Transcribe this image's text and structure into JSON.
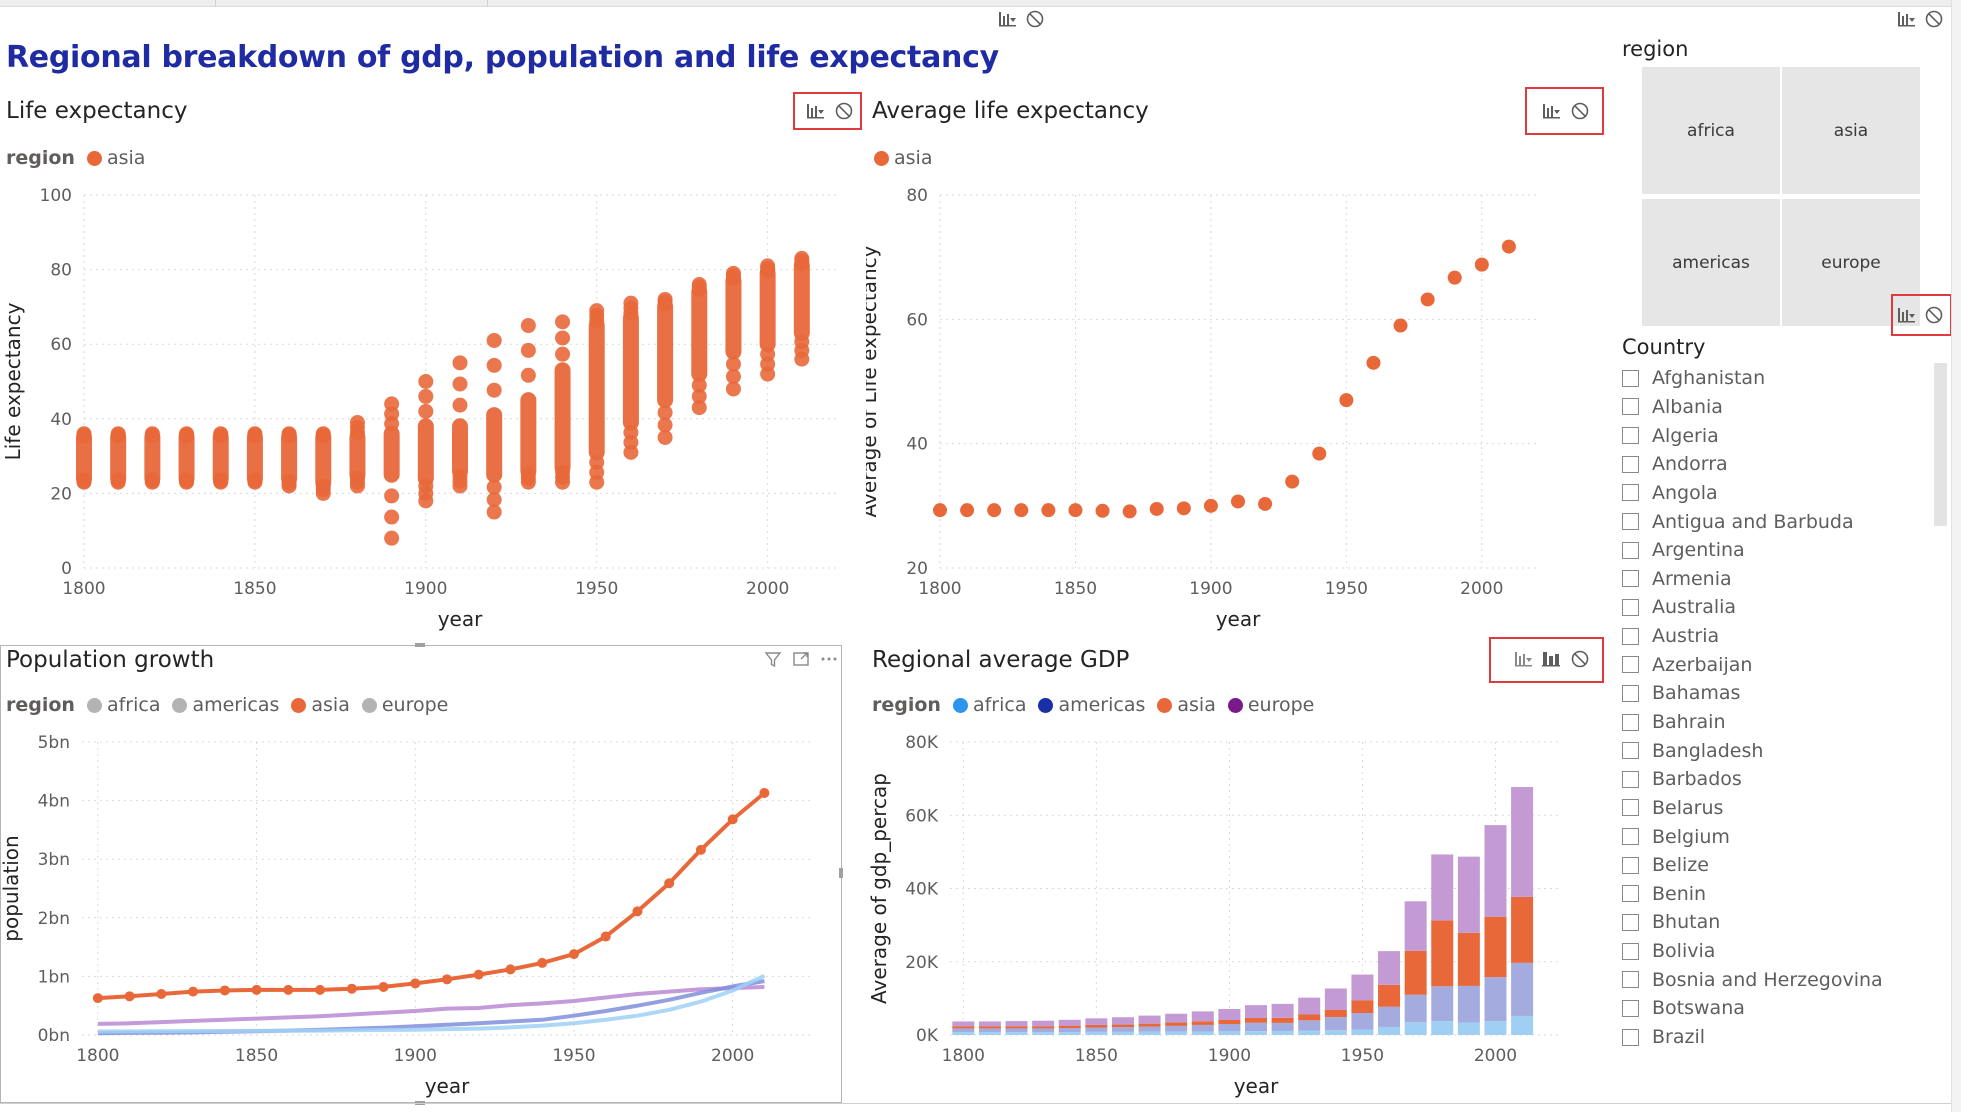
{
  "page": {
    "title": "Regional breakdown of gdp, population and life expectancy"
  },
  "colors": {
    "accent_title": "#1f2ba3",
    "asia": "#e8683a",
    "africa": "#2e95ef",
    "americas": "#1a2fa5",
    "europe": "#7a1a8a",
    "inactive": "#b3b3b3",
    "icon_box": "#e0393e"
  },
  "icons": {
    "filter": "filter-icon",
    "no_impact": "none-icon",
    "highlight": "highlight-icon",
    "focus": "focus-mode-icon",
    "more": "more-options-icon"
  },
  "life_exp": {
    "title": "Life expectancy",
    "legend_title": "region",
    "legend_items": [
      "asia"
    ]
  },
  "avg_life": {
    "title": "Average life expectancy",
    "legend_items": [
      "asia"
    ]
  },
  "pop_growth": {
    "title": "Population growth",
    "legend_title": "region",
    "legend_items": [
      "africa",
      "americas",
      "asia",
      "europe"
    ]
  },
  "gdp": {
    "title": "Regional average GDP",
    "legend_title": "region",
    "legend_items": [
      "africa",
      "americas",
      "asia",
      "europe"
    ]
  },
  "region_slicer": {
    "title": "region",
    "tiles": [
      "africa",
      "asia",
      "americas",
      "europe"
    ]
  },
  "country_slicer": {
    "title": "Country",
    "items": [
      "Afghanistan",
      "Albania",
      "Algeria",
      "Andorra",
      "Angola",
      "Antigua and Barbuda",
      "Argentina",
      "Armenia",
      "Australia",
      "Austria",
      "Azerbaijan",
      "Bahamas",
      "Bahrain",
      "Bangladesh",
      "Barbados",
      "Belarus",
      "Belgium",
      "Belize",
      "Benin",
      "Bhutan",
      "Bolivia",
      "Bosnia and Herzegovina",
      "Botswana",
      "Brazil"
    ]
  },
  "chart_data": [
    {
      "id": "life_expectancy",
      "type": "scatter",
      "title": "Life expectancy",
      "xlabel": "year",
      "ylabel": "Life expectancy",
      "xlim": [
        1800,
        2020
      ],
      "ylim": [
        0,
        100
      ],
      "xticks": [
        1800,
        1850,
        1900,
        1950,
        2000
      ],
      "yticks": [
        0,
        20,
        40,
        60,
        80,
        100
      ],
      "legend": "top-left",
      "series": [
        {
          "name": "asia",
          "color": "#e8683a",
          "x": [
            1800,
            1810,
            1820,
            1830,
            1840,
            1850,
            1860,
            1870,
            1880,
            1890,
            1900,
            1910,
            1920,
            1930,
            1940,
            1950,
            1960,
            1970,
            1980,
            1990,
            2000,
            2010
          ],
          "y_min": [
            23,
            23,
            23,
            23,
            23,
            23,
            22,
            20,
            22,
            8,
            18,
            22,
            15,
            23,
            23,
            23,
            31,
            35,
            43,
            48,
            52,
            56
          ],
          "y_max": [
            36,
            36,
            36,
            36,
            36,
            36,
            36,
            36,
            39,
            44,
            50,
            55,
            61,
            65,
            66,
            69,
            71,
            72,
            76,
            79,
            81,
            83
          ],
          "y_core_min": [
            24,
            24,
            24,
            24,
            24,
            24,
            24,
            23,
            25,
            25,
            24,
            26,
            25,
            26,
            27,
            31,
            39,
            45,
            52,
            58,
            60,
            63
          ],
          "y_core_max": [
            35,
            35,
            35,
            35,
            35,
            35,
            35,
            35,
            35,
            36,
            38,
            38,
            41,
            45,
            53,
            65,
            67,
            70,
            74,
            77,
            79,
            81
          ]
        }
      ]
    },
    {
      "id": "average_life_expectancy",
      "type": "scatter",
      "title": "Average life expectancy",
      "xlabel": "year",
      "ylabel": "Average of Life expectancy",
      "xlim": [
        1800,
        2020
      ],
      "ylim": [
        20,
        80
      ],
      "xticks": [
        1800,
        1850,
        1900,
        1950,
        2000
      ],
      "yticks": [
        20,
        40,
        60,
        80
      ],
      "series": [
        {
          "name": "asia",
          "color": "#e8683a",
          "x": [
            1800,
            1810,
            1820,
            1830,
            1840,
            1850,
            1860,
            1870,
            1880,
            1890,
            1900,
            1910,
            1920,
            1930,
            1940,
            1950,
            1960,
            1970,
            1980,
            1990,
            2000,
            2010
          ],
          "y": [
            29.3,
            29.3,
            29.3,
            29.3,
            29.3,
            29.3,
            29.2,
            29.1,
            29.5,
            29.6,
            30.0,
            30.7,
            30.3,
            33.9,
            38.4,
            47.0,
            53.0,
            59.0,
            63.2,
            66.7,
            68.8,
            71.7
          ]
        }
      ]
    },
    {
      "id": "population_growth",
      "type": "line",
      "title": "Population growth",
      "xlabel": "year",
      "ylabel": "population",
      "xlim": [
        1795,
        2025
      ],
      "ylim": [
        0,
        5000000000
      ],
      "xticks": [
        1800,
        1850,
        1900,
        1950,
        2000
      ],
      "yticks": [
        0,
        1000000000,
        2000000000,
        3000000000,
        4000000000,
        5000000000
      ],
      "ytick_labels": [
        "0bn",
        "1bn",
        "2bn",
        "3bn",
        "4bn",
        "5bn"
      ],
      "x": [
        1800,
        1810,
        1820,
        1830,
        1840,
        1850,
        1860,
        1870,
        1880,
        1890,
        1900,
        1910,
        1920,
        1930,
        1940,
        1950,
        1960,
        1970,
        1980,
        1990,
        2000,
        2010
      ],
      "series": [
        {
          "name": "asia",
          "color": "#e8683a",
          "markers": true,
          "values": [
            630000000,
            660000000,
            700000000,
            740000000,
            760000000,
            770000000,
            770000000,
            770000000,
            790000000,
            820000000,
            880000000,
            950000000,
            1030000000,
            1120000000,
            1230000000,
            1380000000,
            1680000000,
            2110000000,
            2590000000,
            3160000000,
            3680000000,
            4130000000
          ]
        },
        {
          "name": "europe",
          "color": "#b98ad4",
          "markers": false,
          "values": [
            190000000,
            200000000,
            220000000,
            240000000,
            260000000,
            280000000,
            300000000,
            320000000,
            350000000,
            380000000,
            410000000,
            450000000,
            460000000,
            510000000,
            540000000,
            580000000,
            640000000,
            700000000,
            740000000,
            780000000,
            800000000,
            820000000
          ]
        },
        {
          "name": "americas",
          "color": "#7f8fdc",
          "markers": false,
          "values": [
            30000000,
            35000000,
            40000000,
            45000000,
            55000000,
            65000000,
            75000000,
            90000000,
            105000000,
            125000000,
            150000000,
            175000000,
            200000000,
            230000000,
            260000000,
            330000000,
            410000000,
            500000000,
            600000000,
            720000000,
            830000000,
            920000000
          ]
        },
        {
          "name": "africa",
          "color": "#9fd0f4",
          "markers": false,
          "values": [
            60000000,
            62000000,
            64000000,
            66000000,
            68000000,
            70000000,
            72000000,
            75000000,
            80000000,
            85000000,
            90000000,
            100000000,
            110000000,
            130000000,
            160000000,
            200000000,
            260000000,
            330000000,
            430000000,
            570000000,
            760000000,
            1010000000
          ]
        }
      ]
    },
    {
      "id": "regional_average_gdp",
      "type": "bar",
      "stacked": true,
      "title": "Regional average GDP",
      "xlabel": "year",
      "ylabel": "Average of gdp_percap",
      "xlim": [
        1795,
        2025
      ],
      "ylim": [
        0,
        80000
      ],
      "xticks": [
        1800,
        1850,
        1900,
        1950,
        2000
      ],
      "yticks": [
        0,
        20000,
        40000,
        60000,
        80000
      ],
      "ytick_labels": [
        "0K",
        "20K",
        "40K",
        "60K",
        "80K"
      ],
      "categories": [
        1800,
        1810,
        1820,
        1830,
        1840,
        1850,
        1860,
        1870,
        1880,
        1890,
        1900,
        1910,
        1920,
        1930,
        1940,
        1950,
        1960,
        1970,
        1980,
        1990,
        2000,
        2010
      ],
      "series": [
        {
          "name": "africa",
          "color": "#9fd0f4",
          "values": [
            800,
            800,
            800,
            800,
            800,
            850,
            850,
            900,
            900,
            950,
            1000,
            1050,
            1100,
            1200,
            1300,
            1500,
            2200,
            3500,
            3800,
            3400,
            3800,
            5200
          ]
        },
        {
          "name": "americas",
          "color": "#a4acdf",
          "values": [
            1000,
            1000,
            1000,
            1000,
            1100,
            1200,
            1300,
            1400,
            1600,
            1800,
            2000,
            2300,
            2200,
            2800,
            3600,
            4500,
            5500,
            7500,
            9500,
            10000,
            12000,
            14500
          ]
        },
        {
          "name": "asia",
          "color": "#e8683a",
          "values": [
            600,
            600,
            600,
            600,
            650,
            700,
            700,
            800,
            900,
            1000,
            1100,
            1300,
            1400,
            1600,
            2000,
            3500,
            6000,
            12000,
            18000,
            14500,
            16500,
            18000
          ]
        },
        {
          "name": "europe",
          "color": "#c49ad4",
          "values": [
            1300,
            1300,
            1400,
            1500,
            1600,
            1800,
            2000,
            2200,
            2400,
            2700,
            3000,
            3500,
            3800,
            4600,
            5800,
            7000,
            9200,
            13500,
            18000,
            20800,
            25000,
            30000
          ]
        }
      ]
    }
  ]
}
